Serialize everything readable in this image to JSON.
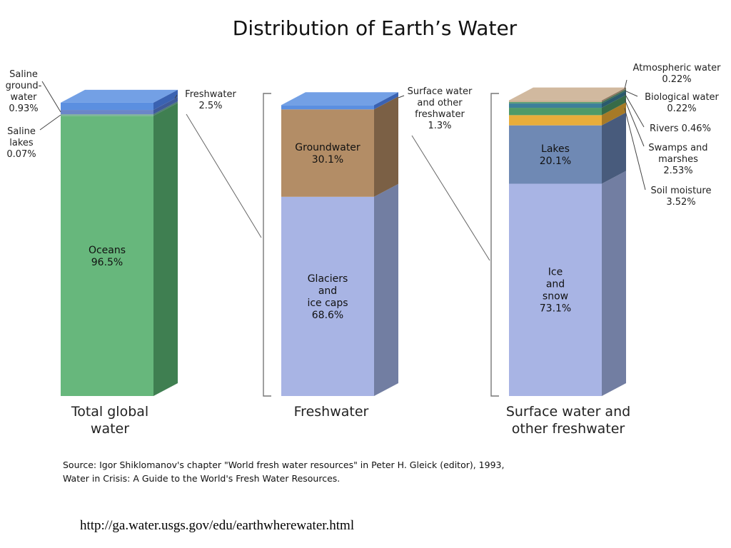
{
  "title": "Distribution of Earth’s Water",
  "source_lines": [
    "Source: Igor Shiklomanov's chapter \"World fresh water resources\" in Peter H. Gleick (editor), 1993,",
    "Water in Crisis: A Guide to the World's Fresh Water Resources."
  ],
  "url": "http://ga.water.usgs.gov/edu/earthwherewater.html",
  "chart_data": {
    "type": "bar",
    "stacked": true,
    "unit": "%",
    "bars": [
      {
        "category": "Total global water",
        "segments": [
          {
            "name": "Oceans",
            "value": 96.5,
            "color": "#67b77c",
            "side_color": "#3f7f51",
            "label_lines": [
              "Oceans",
              "96.5%"
            ]
          },
          {
            "name": "Saline lakes",
            "value": 0.07,
            "color": "#7fb0a0",
            "side_color": "#4f7d70",
            "label_lines": [
              "Saline",
              "lakes",
              "0.07%"
            ]
          },
          {
            "name": "Saline ground-water",
            "value": 0.93,
            "color": "#6b86c8",
            "side_color": "#3f5a9a",
            "label_lines": [
              "Saline",
              "ground-",
              "water",
              "0.93%"
            ]
          },
          {
            "name": "Freshwater",
            "value": 2.5,
            "color": "#5b8fe0",
            "side_color": "#3a62b2",
            "label_lines": [
              "Freshwater",
              "2.5%"
            ]
          }
        ]
      },
      {
        "category": "Freshwater",
        "segments": [
          {
            "name": "Glaciers and ice caps",
            "value": 68.6,
            "color": "#a8b4e4",
            "side_color": "#727ea2",
            "label_lines": [
              "Glaciers",
              "and",
              "ice caps",
              "68.6%"
            ]
          },
          {
            "name": "Groundwater",
            "value": 30.1,
            "color": "#b38d66",
            "side_color": "#7b6045",
            "label_lines": [
              "Groundwater",
              "30.1%"
            ]
          },
          {
            "name": "Surface water and other freshwater",
            "value": 1.3,
            "color": "#5b8fe0",
            "side_color": "#3a62b2",
            "label_lines": [
              "Surface water",
              "and other",
              "freshwater",
              "1.3%"
            ]
          }
        ]
      },
      {
        "category": "Surface water and other freshwater",
        "segments": [
          {
            "name": "Ice and snow",
            "value": 73.1,
            "color": "#a8b4e4",
            "side_color": "#727ea2",
            "label_lines": [
              "Ice",
              "and",
              "snow",
              "73.1%"
            ]
          },
          {
            "name": "Lakes",
            "value": 20.1,
            "color": "#6f89b4",
            "side_color": "#485b7c",
            "label_lines": [
              "Lakes",
              "20.1%"
            ]
          },
          {
            "name": "Soil moisture",
            "value": 3.52,
            "color": "#e8ad3b",
            "side_color": "#a77a26",
            "label_lines": [
              "Soil moisture",
              "3.52%"
            ]
          },
          {
            "name": "Swamps and marshes",
            "value": 2.53,
            "color": "#4f9a68",
            "side_color": "#376b48",
            "label_lines": [
              "Swamps and",
              "marshes",
              "2.53%"
            ]
          },
          {
            "name": "Rivers",
            "value": 0.46,
            "color": "#3d7f9a",
            "side_color": "#2a5a6d",
            "label_lines": [
              "Rivers  0.46%"
            ]
          },
          {
            "name": "Biological water",
            "value": 0.22,
            "color": "#5fa07a",
            "side_color": "#3f6f53",
            "label_lines": [
              "Biological water",
              "0.22%"
            ]
          },
          {
            "name": "Atmospheric water",
            "value": 0.22,
            "color": "#c9ad8e",
            "side_color": "#8f7a63",
            "label_lines": [
              "Atmospheric water",
              "0.22%"
            ]
          }
        ]
      }
    ],
    "category_label_lines": [
      [
        "Total global",
        "water"
      ],
      [
        "Freshwater"
      ],
      [
        "Surface water and",
        "other freshwater"
      ]
    ]
  }
}
